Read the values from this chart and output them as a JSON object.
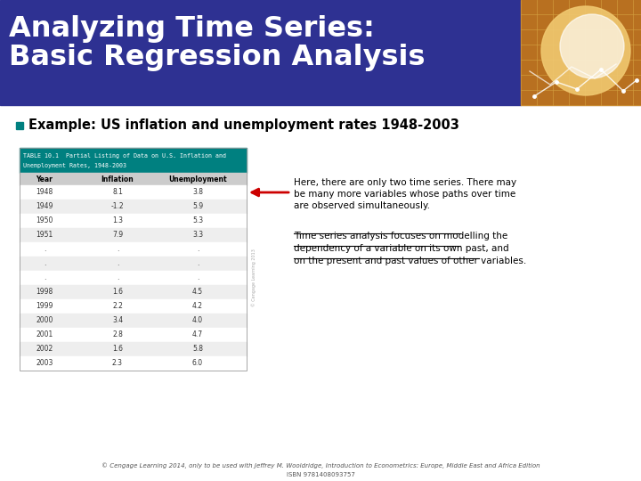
{
  "title_line1": "Analyzing Time Series:",
  "title_line2": "Basic Regression Analysis",
  "header_bg_color": "#2e3192",
  "header_text_color": "#ffffff",
  "bullet_marker_color": "#008080",
  "bullet_text": "Example: US inflation and unemployment rates 1948-2003",
  "table_header_bg": "#008080",
  "table_header_text_color": "#ffffff",
  "table_col_headers": [
    "Year",
    "Inflation",
    "Unemployment"
  ],
  "table_rows": [
    [
      "1948",
      "8.1",
      "3.8"
    ],
    [
      "1949",
      "-1.2",
      "5.9"
    ],
    [
      "1950",
      "1.3",
      "5.3"
    ],
    [
      "1951",
      "7.9",
      "3.3"
    ],
    [
      ".",
      ".",
      "."
    ],
    [
      ".",
      ".",
      "."
    ],
    [
      ".",
      ".",
      "."
    ],
    [
      "1998",
      "1.6",
      "4.5"
    ],
    [
      "1999",
      "2.2",
      "4.2"
    ],
    [
      "2000",
      "3.4",
      "4.0"
    ],
    [
      "2001",
      "2.8",
      "4.7"
    ],
    [
      "2002",
      "1.6",
      "5.8"
    ],
    [
      "2003",
      "2.3",
      "6.0"
    ]
  ],
  "arrow_color": "#cc0000",
  "note_text_lines": [
    "Here, there are only two time series. There may",
    "be many more variables whose paths over time",
    "are observed simultaneously."
  ],
  "underline_text_lines": [
    "Time series analysis focuses on modelling the",
    "dependency of a variable on its own past, and",
    "on the present and past values of other variables."
  ],
  "footer_text1": "© Cengage Learning 2014, only to be used with Jeffrey M. Wooldridge, Introduction to Econometrics: Europe, Middle East and Africa Edition",
  "footer_text2": "ISBN 9781408093757",
  "bg_color": "#ffffff"
}
